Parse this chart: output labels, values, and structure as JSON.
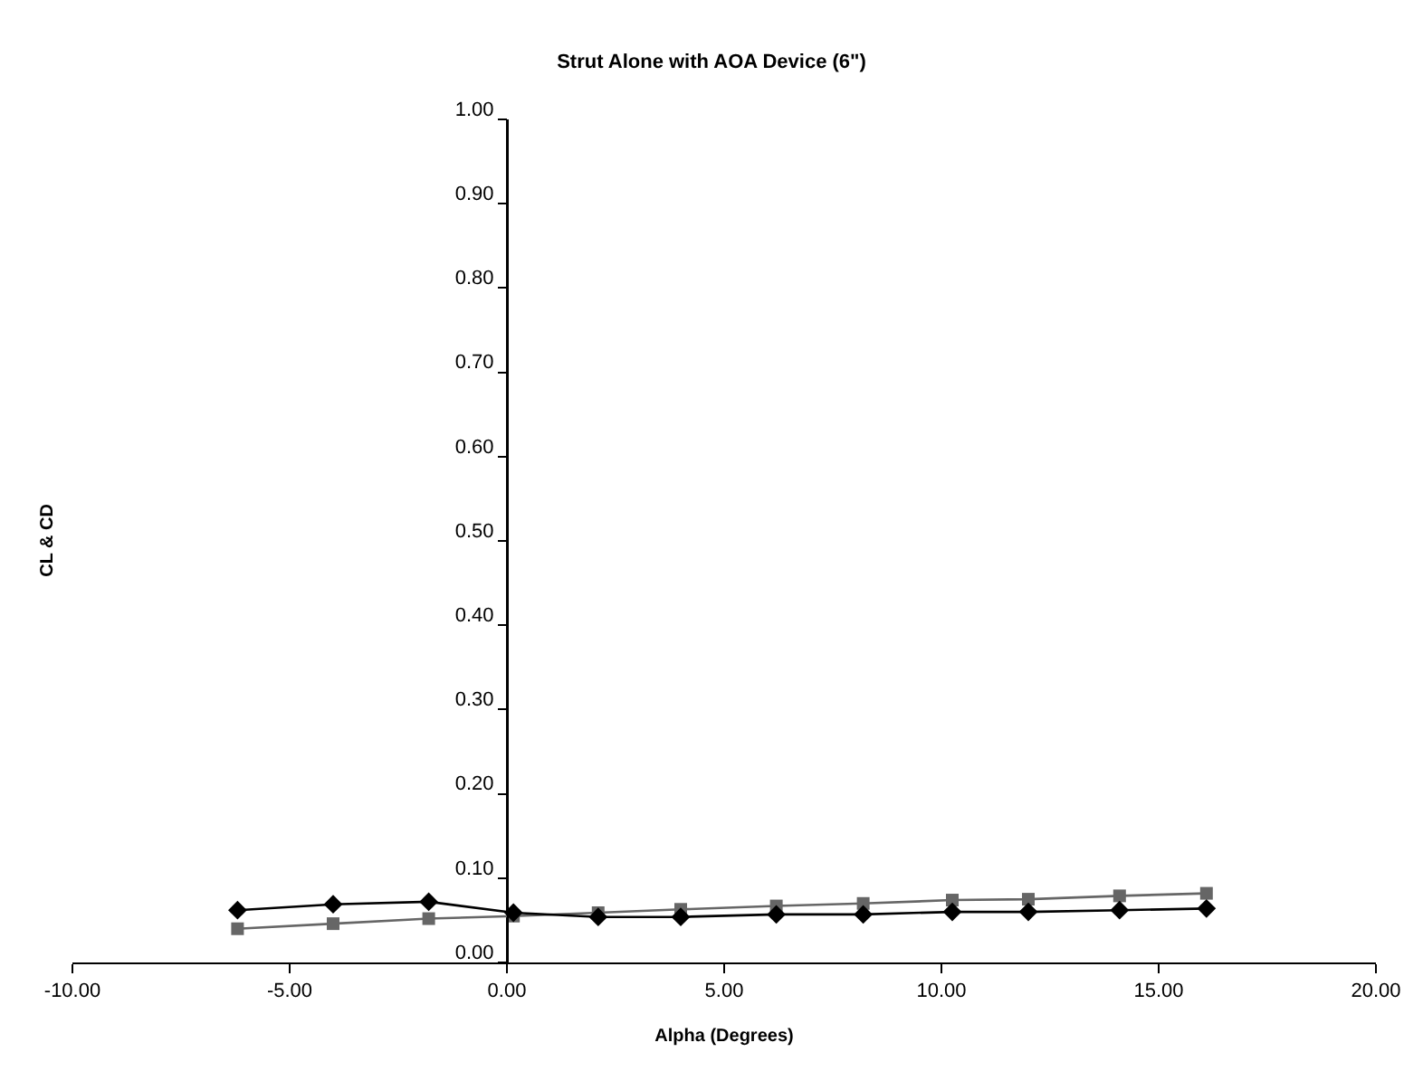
{
  "chart_data": {
    "type": "line",
    "title": "Strut Alone with AOA Device (6\")",
    "xlabel": "Alpha (Degrees)",
    "ylabel": "CL & CD",
    "x": [
      -6.2,
      -4.0,
      -1.8,
      0.15,
      2.1,
      4.0,
      6.2,
      8.2,
      10.25,
      12.0,
      14.1,
      16.1
    ],
    "series": [
      {
        "color": "#000000",
        "marker": "diamond",
        "values": [
          0.062,
          0.069,
          0.072,
          0.059,
          0.054,
          0.054,
          0.057,
          0.057,
          0.06,
          0.06,
          0.062,
          0.064
        ]
      },
      {
        "color": "#666666",
        "marker": "square",
        "values": [
          0.04,
          0.046,
          0.052,
          0.055,
          0.059,
          0.063,
          0.067,
          0.07,
          0.074,
          0.075,
          0.079,
          0.082
        ]
      }
    ],
    "xlim": [
      -10,
      20
    ],
    "xticks": [
      {
        "value": -10,
        "label": "-10.00"
      },
      {
        "value": -5,
        "label": "-5.00"
      },
      {
        "value": 0,
        "label": "0.00"
      },
      {
        "value": 5,
        "label": "5.00"
      },
      {
        "value": 10,
        "label": "10.00"
      },
      {
        "value": 15,
        "label": "15.00"
      },
      {
        "value": 20,
        "label": "20.00"
      }
    ],
    "ylim": [
      0,
      1
    ],
    "yticks": [
      {
        "value": 0,
        "label": "0.00"
      },
      {
        "value": 0.1,
        "label": "0.10"
      },
      {
        "value": 0.2,
        "label": "0.20"
      },
      {
        "value": 0.3,
        "label": "0.30"
      },
      {
        "value": 0.4,
        "label": "0.40"
      },
      {
        "value": 0.5,
        "label": "0.50"
      },
      {
        "value": 0.6,
        "label": "0.60"
      },
      {
        "value": 0.7,
        "label": "0.70"
      },
      {
        "value": 0.8,
        "label": "0.80"
      },
      {
        "value": 0.9,
        "label": "0.90"
      },
      {
        "value": 1,
        "label": "1.00"
      }
    ],
    "grid": false
  }
}
